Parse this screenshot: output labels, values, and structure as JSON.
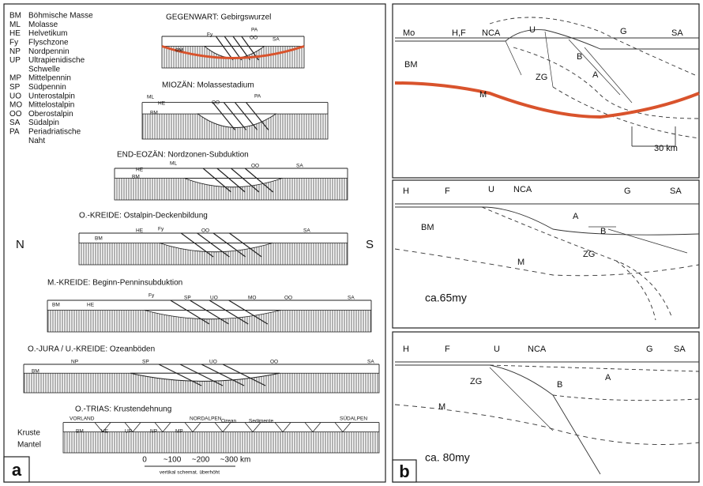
{
  "panel_a": {
    "label": "a",
    "legend": [
      {
        "abbr": "BM",
        "lines": [
          "Böhmische Masse"
        ]
      },
      {
        "abbr": "ML",
        "lines": [
          "Molasse"
        ]
      },
      {
        "abbr": "HE",
        "lines": [
          "Helvetikum"
        ]
      },
      {
        "abbr": "Fy",
        "lines": [
          "Flyschzone"
        ]
      },
      {
        "abbr": "NP",
        "lines": [
          "Nordpennin"
        ]
      },
      {
        "abbr": "UP",
        "lines": [
          "Ultrapienidische",
          "Schwelle"
        ]
      },
      {
        "abbr": "MP",
        "lines": [
          "Mittelpennin"
        ]
      },
      {
        "abbr": "SP",
        "lines": [
          "Südpennin"
        ]
      },
      {
        "abbr": "UO",
        "lines": [
          "Unterostalpin"
        ]
      },
      {
        "abbr": "MO",
        "lines": [
          "Mittelostalpin"
        ]
      },
      {
        "abbr": "OO",
        "lines": [
          "Oberostalpin"
        ]
      },
      {
        "abbr": "SA",
        "lines": [
          "Südalpin"
        ]
      },
      {
        "abbr": "PA",
        "lines": [
          "Periadriatische",
          "Naht"
        ]
      }
    ],
    "sections": [
      {
        "title": "GEGENWART: Gebirgswurzel",
        "labels": [
          "Fy",
          "OO",
          "PA",
          "SA",
          "BM"
        ]
      },
      {
        "title": "MIOZÄN: Molassestadium",
        "labels": [
          "ML",
          "HE",
          "OO",
          "PA",
          "BM"
        ]
      },
      {
        "title": "END-EOZÄN: Nordzonen-Subduktion",
        "labels": [
          "ML",
          "HE",
          "OO",
          "SA",
          "BM"
        ]
      },
      {
        "title": "O.-KREIDE: Ostalpin-Deckenbildung",
        "labels": [
          "HE",
          "Fy",
          "OO",
          "SA",
          "BM"
        ]
      },
      {
        "title": "M.-KREIDE: Beginn-Penninsubduktion",
        "labels": [
          "Fy",
          "SP",
          "UO",
          "MO",
          "OO",
          "SA",
          "BM",
          "HE"
        ]
      },
      {
        "title": "O.-JURA / U.-KREIDE: Ozeanböden",
        "labels": [
          "NP",
          "SP",
          "UO",
          "OO",
          "SA",
          "BM"
        ]
      },
      {
        "title": "O.-TRIAS: Krustendehnung",
        "labels": [
          "VORLAND",
          "NORDALPEN",
          "Ozean",
          "Sedimente",
          "SÜDALPEN",
          "BM",
          "HE",
          "UP",
          "NP",
          "MP"
        ]
      }
    ],
    "direction": [
      "N",
      "S"
    ],
    "layers": [
      "Kruste",
      "Mantel"
    ],
    "scale": {
      "ticks": [
        "0",
        "~100",
        "~200",
        "~300 km"
      ],
      "note": "vertikal schemat. überhöht"
    }
  },
  "panel_b": {
    "label": "b",
    "sections": [
      {
        "labels": [
          "Mo",
          "H,F",
          "NCA",
          "U",
          "B",
          "G",
          "SA",
          "BM",
          "ZG",
          "A",
          "M"
        ],
        "scale": "30 km"
      },
      {
        "labels": [
          "H",
          "F",
          "U",
          "NCA",
          "G",
          "SA",
          "BM",
          "A",
          "B",
          "ZG",
          "M"
        ],
        "age": "ca.65my"
      },
      {
        "labels": [
          "H",
          "F",
          "U",
          "NCA",
          "G",
          "SA",
          "ZG",
          "B",
          "A",
          "M"
        ],
        "age": "ca. 80my"
      }
    ]
  }
}
